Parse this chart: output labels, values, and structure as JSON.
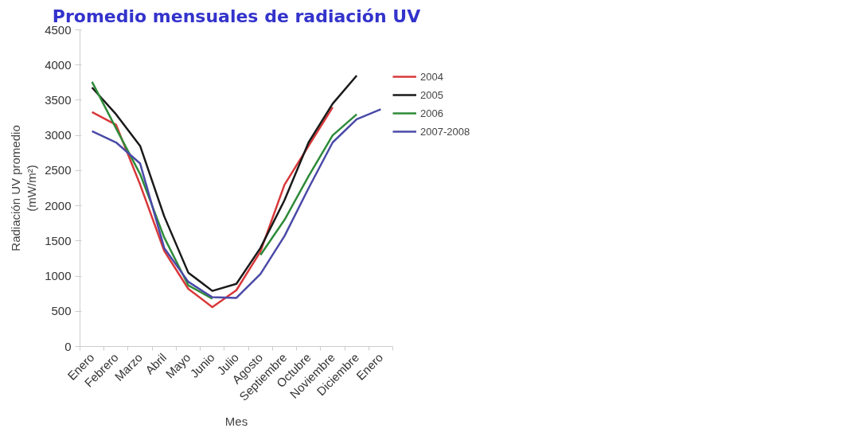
{
  "chart_data": {
    "type": "line",
    "title": "Promedio mensuales de radiación UV",
    "xlabel": "Mes",
    "ylabel": "Radiación UV promedio\n(mW/m²)",
    "categories": [
      "Enero",
      "Febrero",
      "Marzo",
      "Abril",
      "Mayo",
      "Junio",
      "Julio",
      "Agosto",
      "Septiembre",
      "Octubre",
      "Noviembre",
      "Diciembre",
      "Enero"
    ],
    "ylim": [
      0,
      4500
    ],
    "yticks": [
      0,
      500,
      1000,
      1500,
      2000,
      2500,
      3000,
      3500,
      4000,
      4500
    ],
    "grid": false,
    "legend": "top right",
    "marker": "none",
    "line_style": "solid",
    "series": [
      {
        "name": "2004",
        "color": "#d9383a",
        "values": [
          3330,
          3150,
          2300,
          1360,
          820,
          560,
          800,
          1350,
          2300,
          2850,
          3400,
          null,
          null
        ]
      },
      {
        "name": "2005",
        "color": "#1a1a1a",
        "values": [
          3680,
          3300,
          2850,
          1850,
          1050,
          790,
          890,
          1400,
          2080,
          2900,
          3450,
          3850,
          null
        ]
      },
      {
        "name": "2006",
        "color": "#2e8b3a",
        "values": [
          3760,
          3100,
          2450,
          1550,
          870,
          680,
          null,
          1300,
          1800,
          2420,
          3000,
          3300,
          null
        ]
      },
      {
        "name": "2007-2008",
        "color": "#4a4aa8",
        "values": [
          3060,
          2900,
          2600,
          1400,
          920,
          700,
          690,
          1030,
          1570,
          2250,
          2900,
          3230,
          3370
        ]
      }
    ]
  }
}
